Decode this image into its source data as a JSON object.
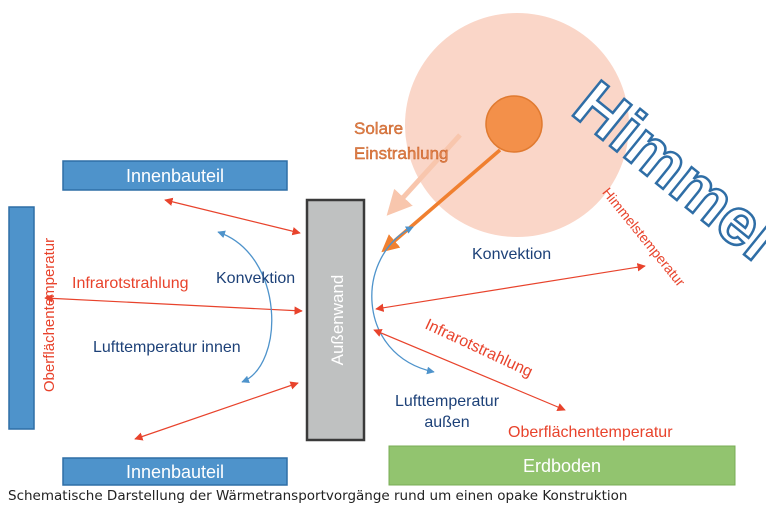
{
  "colors": {
    "blue_box": "#4e93cb",
    "wall_fill": "#bfc1c1",
    "ground_fill": "#92c46f",
    "sun_halo": "#f8cbb9",
    "sun_core": "#f3904a",
    "red": "#e8432c",
    "orange": "#f08030",
    "dark_blue_text": "#1d4178",
    "himmel_fill": "#a8cce6"
  },
  "labels": {
    "innenbauteil_top": "Innenbauteil",
    "innenbauteil_bottom": "Innenbauteil",
    "oberflaechen_left": "Oberflächentemperatur",
    "infrarot_left": "Infrarotstrahlung",
    "konvektion_left": "Konvektion",
    "lufttemp_innen": "Lufttemperatur innen",
    "aussenwand": "Außenwand",
    "solare_line1": "Solare",
    "solare_line2": "Einstrahlung",
    "himmel": "Himmel",
    "himmelstemperatur": "Himmelstemperatur",
    "konvektion_right": "Konvektion",
    "infrarot_right": "Infrarotstrahlung",
    "lufttemp_aussen_line1": "Lufttemperatur",
    "lufttemp_aussen_line2": "außen",
    "oberflaechen_right": "Oberflächentemperatur",
    "erdboden": "Erdboden"
  },
  "caption": "Schematische Darstellung der Wärmetransportvorgänge rund um einen opake Konstruktion"
}
